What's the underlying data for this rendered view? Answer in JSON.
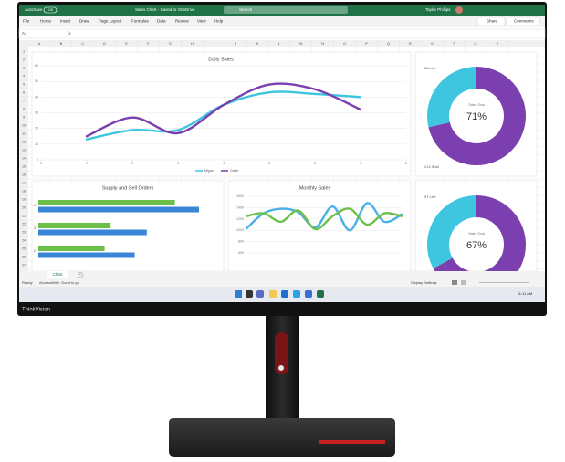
{
  "titlebar": {
    "autosave": "AutoSave",
    "toggle": "Off",
    "file_title": "Sales Chart - Saved to OneDrive",
    "search": "Search",
    "user": "Taylor Phillips"
  },
  "menu": [
    "File",
    "Home",
    "Insert",
    "Draw",
    "Page Layout",
    "Formulas",
    "Data",
    "Review",
    "View",
    "Help"
  ],
  "share": "Share",
  "comments": "Comments",
  "name_box": "A1",
  "fx": "fx",
  "columns": [
    "A",
    "B",
    "C",
    "D",
    "E",
    "F",
    "G",
    "H",
    "I",
    "J",
    "K",
    "L",
    "M",
    "N",
    "O",
    "P",
    "Q",
    "R",
    "S",
    "T",
    "U",
    "V"
  ],
  "rows": [
    1,
    2,
    3,
    4,
    5,
    6,
    7,
    8,
    9,
    10,
    11,
    12,
    13,
    14,
    15,
    16,
    17,
    18,
    19,
    20,
    21,
    22,
    23,
    24,
    25,
    26,
    27
  ],
  "charts": [
    {
      "type": "line",
      "title": "Daily Sales",
      "xlim": [
        0,
        8
      ],
      "xticks": [
        0,
        1,
        2,
        3,
        4,
        5,
        6,
        7,
        8
      ],
      "ylim": [
        0,
        60
      ],
      "yticks": [
        0,
        10,
        20,
        30,
        40,
        50,
        60
      ],
      "x": [
        1,
        2,
        3,
        4,
        5,
        6,
        7
      ],
      "series": [
        {
          "name": "Miguel",
          "color": "#3ec6e0",
          "values": [
            13,
            19,
            19,
            35,
            43,
            42,
            40
          ]
        },
        {
          "name": "Caleb",
          "color": "#7b3fb0",
          "values": [
            15,
            27,
            17,
            35,
            48,
            45,
            32
          ]
        }
      ]
    },
    {
      "type": "pie",
      "donut": true,
      "values": [
        214,
        86
      ],
      "value_labels": [
        "214 Sold",
        "86 Left"
      ],
      "colors": [
        "#7b3fb0",
        "#3ec6e0"
      ],
      "center_title": "Sales Goal",
      "center_label": "71%"
    },
    {
      "type": "barh",
      "title": "Supply and Sell Orders",
      "categories": [
        "4",
        "3",
        "2"
      ],
      "xlim": [
        0,
        100
      ],
      "series": [
        {
          "color": "#6cc04a",
          "values": [
            68,
            36,
            33
          ]
        },
        {
          "color": "#3a86d6",
          "values": [
            80,
            54,
            48
          ]
        }
      ]
    },
    {
      "type": "line",
      "title": "Monthly Sales",
      "ylim": [
        600,
        1600
      ],
      "yticks": [
        600,
        800,
        1000,
        1200,
        1400,
        1600
      ],
      "x": [
        0,
        1,
        2,
        3,
        4,
        5,
        6,
        7,
        8,
        9
      ],
      "xlim": [
        0,
        9
      ],
      "series": [
        {
          "color": "#4ab0e8",
          "values": [
            1030,
            1300,
            1380,
            1320,
            1050,
            1420,
            1000,
            1480,
            1150,
            1280
          ]
        },
        {
          "color": "#6cc04a",
          "values": [
            1250,
            1300,
            1150,
            1350,
            1020,
            1250,
            1380,
            1100,
            1300,
            1250
          ]
        }
      ]
    },
    {
      "type": "pie",
      "donut": true,
      "values": [
        197,
        97
      ],
      "value_labels": [
        null,
        "97 Left"
      ],
      "colors": [
        "#7b3fb0",
        "#3ec6e0"
      ],
      "center_title": "Sales Goal",
      "center_label": "67%"
    }
  ],
  "sheet_tab": "Chart",
  "add_sheet": "+",
  "status": {
    "ready": "Ready",
    "accessibility": "Accessibility: Good to go",
    "display": "Display Settings"
  },
  "clock": "11:11 AM",
  "brand": "ThinkVision"
}
